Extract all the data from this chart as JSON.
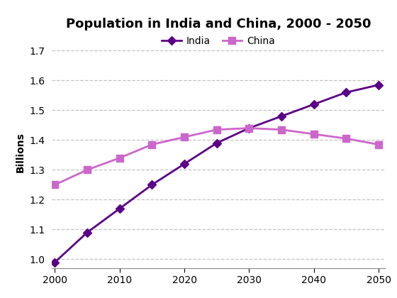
{
  "title": "Population in India and China, 2000 - 2050",
  "ylabel": "Billions",
  "india_years": [
    2000,
    2005,
    2010,
    2015,
    2020,
    2025,
    2030,
    2035,
    2040,
    2045,
    2050
  ],
  "india_values": [
    0.99,
    1.09,
    1.17,
    1.25,
    1.32,
    1.39,
    1.44,
    1.48,
    1.52,
    1.56,
    1.585
  ],
  "china_years": [
    2000,
    2005,
    2010,
    2015,
    2020,
    2025,
    2030,
    2035,
    2040,
    2045,
    2050
  ],
  "china_values": [
    1.25,
    1.3,
    1.34,
    1.385,
    1.41,
    1.435,
    1.44,
    1.435,
    1.42,
    1.405,
    1.385
  ],
  "india_color": "#5B0086",
  "china_color": "#CC66CC",
  "india_marker": "D",
  "china_marker": "s",
  "ylim": [
    0.97,
    1.75
  ],
  "yticks": [
    1.0,
    1.1,
    1.2,
    1.3,
    1.4,
    1.5,
    1.6,
    1.7
  ],
  "xticks": [
    2000,
    2010,
    2020,
    2030,
    2040,
    2050
  ],
  "xticklabels": [
    "2000",
    "2010",
    "2020",
    "2030",
    "2040",
    "2050"
  ],
  "grid_color": "#aaaaaa",
  "background_color": "#ffffff",
  "title_fontsize": 13,
  "label_fontsize": 10,
  "tick_fontsize": 10,
  "legend_fontsize": 10
}
